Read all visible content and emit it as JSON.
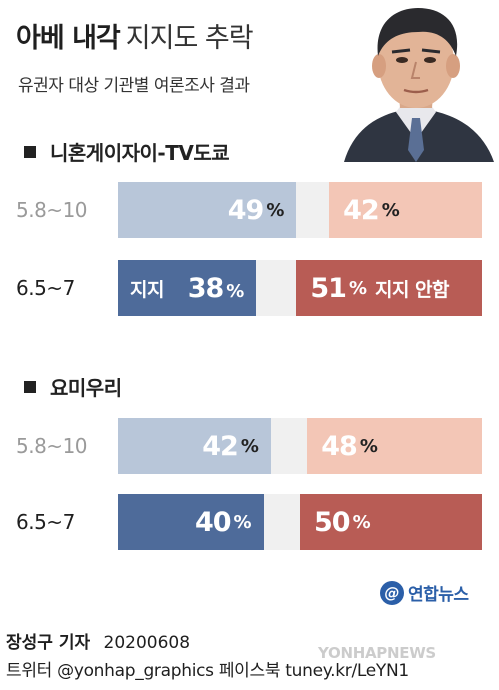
{
  "header": {
    "title_main": "아베 내각",
    "title_sub": "지지도 추락",
    "subtitle": "유권자 대상 기관별 여론조사 결과"
  },
  "colors": {
    "support_old": "#b8c6d9",
    "support_new": "#4e6b9a",
    "oppose_old": "#f3c6b6",
    "oppose_new": "#b85c55",
    "gap": "#f0f0f0"
  },
  "pct_sign": "%",
  "legend": {
    "support_label": "지지",
    "oppose_label": "지지 안함"
  },
  "chart_data": {
    "type": "bar",
    "title": "아베 내각 지지도 추락",
    "subtitle": "유권자 대상 기관별 여론조사 결과",
    "series_names": [
      "지지",
      "지지 안함"
    ],
    "polls": [
      {
        "name": "니혼게이자이-TV도쿄",
        "rows": [
          {
            "period": "5.8~10",
            "support": 49,
            "oppose": 42
          },
          {
            "period": "6.5~7",
            "support": 38,
            "oppose": 51
          }
        ]
      },
      {
        "name": "요미우리",
        "rows": [
          {
            "period": "5.8~10",
            "support": 42,
            "oppose": 48
          },
          {
            "period": "6.5~7",
            "support": 40,
            "oppose": 50
          }
        ]
      }
    ]
  },
  "logo": {
    "mark": "@",
    "text": "연합뉴스"
  },
  "credits": {
    "reporter": "장성구 기자",
    "date": "20200608",
    "line2": "트위터 @yonhap_graphics  페이스북 tuney.kr/LeYN1"
  },
  "watermark": "YONHAPNEWS",
  "portrait_icon": "person-portrait"
}
